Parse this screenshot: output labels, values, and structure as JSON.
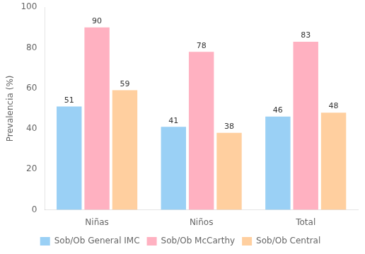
{
  "chart_data": {
    "type": "bar",
    "categories": [
      "Niñas",
      "Niños",
      "Total"
    ],
    "series": [
      {
        "name": "Sob/Ob General IMC",
        "values": [
          51,
          41,
          46
        ]
      },
      {
        "name": "Sob/Ob McCarthy",
        "values": [
          90,
          78,
          83
        ]
      },
      {
        "name": "Sob/Ob Central",
        "values": [
          59,
          38,
          48
        ]
      }
    ],
    "ylabel": "Prevalencia (%)",
    "ylim": [
      0,
      100
    ],
    "yticks": [
      0,
      20,
      40,
      60,
      80,
      100
    ],
    "grid": false,
    "legend": "bottom",
    "data_labels": true
  }
}
